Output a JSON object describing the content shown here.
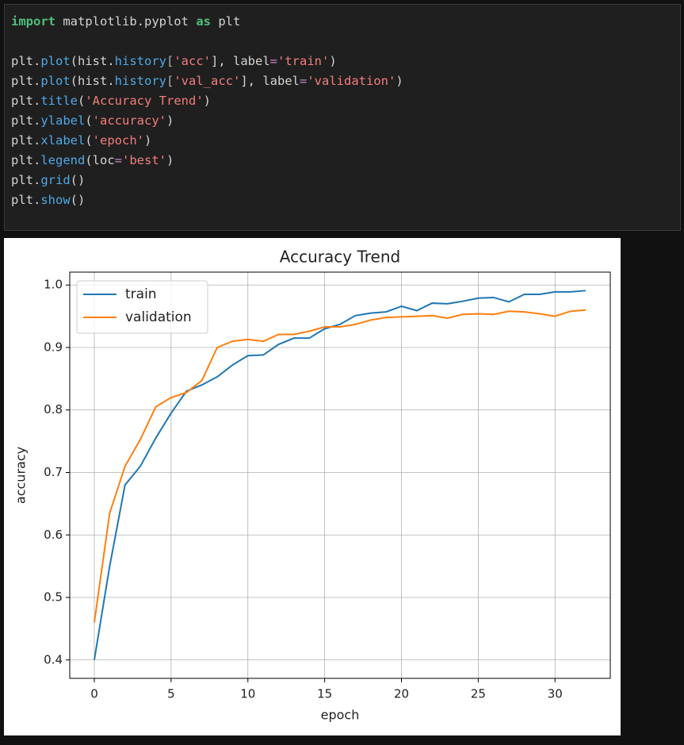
{
  "code": {
    "lines": [
      [
        {
          "text": "import",
          "color": "#4ec07a"
        },
        {
          "text": " matplotlib.pyplot ",
          "color": "#d4d4d4"
        },
        {
          "text": "as",
          "color": "#4ec07a"
        },
        {
          "text": " plt",
          "color": "#d4d4d4"
        }
      ],
      [],
      [
        {
          "text": "plt.",
          "color": "#d4d4d4"
        },
        {
          "text": "plot",
          "color": "#4fa8e6"
        },
        {
          "text": "(hist.",
          "color": "#d4d4d4"
        },
        {
          "text": "history",
          "color": "#4fa8e6"
        },
        {
          "text": "[",
          "color": "#b0b0b0"
        },
        {
          "text": "'acc'",
          "color": "#f47c7c"
        },
        {
          "text": "], label",
          "color": "#d4d4d4"
        },
        {
          "text": "=",
          "color": "#c586c0"
        },
        {
          "text": "'train'",
          "color": "#f47c7c"
        },
        {
          "text": ")",
          "color": "#d4d4d4"
        }
      ],
      [
        {
          "text": "plt.",
          "color": "#d4d4d4"
        },
        {
          "text": "plot",
          "color": "#4fa8e6"
        },
        {
          "text": "(hist.",
          "color": "#d4d4d4"
        },
        {
          "text": "history",
          "color": "#4fa8e6"
        },
        {
          "text": "[",
          "color": "#b0b0b0"
        },
        {
          "text": "'val_acc'",
          "color": "#f47c7c"
        },
        {
          "text": "], label",
          "color": "#d4d4d4"
        },
        {
          "text": "=",
          "color": "#c586c0"
        },
        {
          "text": "'validation'",
          "color": "#f47c7c"
        },
        {
          "text": ")",
          "color": "#d4d4d4"
        }
      ],
      [
        {
          "text": "plt.",
          "color": "#d4d4d4"
        },
        {
          "text": "title",
          "color": "#4fa8e6"
        },
        {
          "text": "(",
          "color": "#d4d4d4"
        },
        {
          "text": "'Accuracy Trend'",
          "color": "#f47c7c"
        },
        {
          "text": ")",
          "color": "#d4d4d4"
        }
      ],
      [
        {
          "text": "plt.",
          "color": "#d4d4d4"
        },
        {
          "text": "ylabel",
          "color": "#4fa8e6"
        },
        {
          "text": "(",
          "color": "#d4d4d4"
        },
        {
          "text": "'accuracy'",
          "color": "#f47c7c"
        },
        {
          "text": ")",
          "color": "#d4d4d4"
        }
      ],
      [
        {
          "text": "plt.",
          "color": "#d4d4d4"
        },
        {
          "text": "xlabel",
          "color": "#4fa8e6"
        },
        {
          "text": "(",
          "color": "#d4d4d4"
        },
        {
          "text": "'epoch'",
          "color": "#f47c7c"
        },
        {
          "text": ")",
          "color": "#d4d4d4"
        }
      ],
      [
        {
          "text": "plt.",
          "color": "#d4d4d4"
        },
        {
          "text": "legend",
          "color": "#4fa8e6"
        },
        {
          "text": "(loc",
          "color": "#d4d4d4"
        },
        {
          "text": "=",
          "color": "#c586c0"
        },
        {
          "text": "'best'",
          "color": "#f47c7c"
        },
        {
          "text": ")",
          "color": "#d4d4d4"
        }
      ],
      [
        {
          "text": "plt.",
          "color": "#d4d4d4"
        },
        {
          "text": "grid",
          "color": "#4fa8e6"
        },
        {
          "text": "()",
          "color": "#d4d4d4"
        }
      ],
      [
        {
          "text": "plt.",
          "color": "#d4d4d4"
        },
        {
          "text": "show",
          "color": "#4fa8e6"
        },
        {
          "text": "()",
          "color": "#d4d4d4"
        }
      ]
    ]
  },
  "chart_data": {
    "type": "line",
    "title": "Accuracy Trend",
    "x_label": "epoch",
    "y_label": "accuracy",
    "x": [
      0,
      1,
      2,
      3,
      4,
      5,
      6,
      7,
      8,
      9,
      10,
      11,
      12,
      13,
      14,
      15,
      16,
      17,
      18,
      19,
      20,
      21,
      22,
      23,
      24,
      25,
      26,
      27,
      28,
      29,
      30,
      31,
      32
    ],
    "series": [
      {
        "name": "train",
        "color": "#1f77b4",
        "values": [
          0.4,
          0.55,
          0.68,
          0.71,
          0.755,
          0.795,
          0.83,
          0.84,
          0.853,
          0.872,
          0.887,
          0.888,
          0.905,
          0.915,
          0.915,
          0.93,
          0.937,
          0.951,
          0.955,
          0.957,
          0.966,
          0.959,
          0.971,
          0.97,
          0.974,
          0.979,
          0.98,
          0.973,
          0.985,
          0.985,
          0.989,
          0.989,
          0.991
        ]
      },
      {
        "name": "validation",
        "color": "#ff7f0e",
        "values": [
          0.46,
          0.635,
          0.71,
          0.753,
          0.805,
          0.82,
          0.828,
          0.847,
          0.9,
          0.91,
          0.913,
          0.91,
          0.921,
          0.921,
          0.926,
          0.933,
          0.933,
          0.937,
          0.944,
          0.948,
          0.949,
          0.95,
          0.951,
          0.947,
          0.953,
          0.954,
          0.953,
          0.958,
          0.957,
          0.954,
          0.95,
          0.958,
          0.96
        ]
      }
    ],
    "xlim": [
      -1.6,
      33.6
    ],
    "xticks": [
      0,
      5,
      10,
      15,
      20,
      25,
      30
    ],
    "ylim": [
      0.3705,
      1.0206
    ],
    "yticks": [
      0.4,
      0.5,
      0.6,
      0.7,
      0.8,
      0.9,
      {
        "value": 1,
        "label": "1.0"
      }
    ],
    "grid": true,
    "legend": "upper left"
  }
}
